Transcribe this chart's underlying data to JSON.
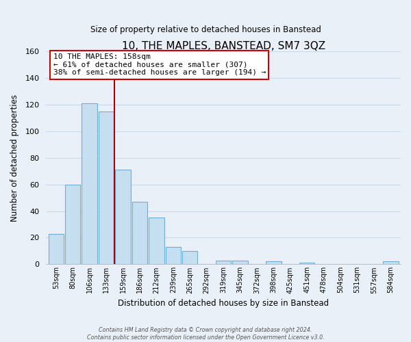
{
  "title": "10, THE MAPLES, BANSTEAD, SM7 3QZ",
  "subtitle": "Size of property relative to detached houses in Banstead",
  "xlabel": "Distribution of detached houses by size in Banstead",
  "ylabel": "Number of detached properties",
  "bin_labels": [
    "53sqm",
    "80sqm",
    "106sqm",
    "133sqm",
    "159sqm",
    "186sqm",
    "212sqm",
    "239sqm",
    "265sqm",
    "292sqm",
    "319sqm",
    "345sqm",
    "372sqm",
    "398sqm",
    "425sqm",
    "451sqm",
    "478sqm",
    "504sqm",
    "531sqm",
    "557sqm",
    "584sqm"
  ],
  "bar_heights": [
    23,
    60,
    121,
    115,
    71,
    47,
    35,
    13,
    10,
    0,
    3,
    3,
    0,
    2,
    0,
    1,
    0,
    0,
    0,
    0,
    2
  ],
  "bar_color": "#c5dff0",
  "bar_edge_color": "#6baed6",
  "vline_color": "#aa0000",
  "annotation_title": "10 THE MAPLES: 158sqm",
  "annotation_line1": "← 61% of detached houses are smaller (307)",
  "annotation_line2": "38% of semi-detached houses are larger (194) →",
  "annotation_box_color": "#ffffff",
  "annotation_box_edge": "#cc0000",
  "ylim": [
    0,
    160
  ],
  "yticks": [
    0,
    20,
    40,
    60,
    80,
    100,
    120,
    140,
    160
  ],
  "footer1": "Contains HM Land Registry data © Crown copyright and database right 2024.",
  "footer2": "Contains public sector information licensed under the Open Government Licence v3.0.",
  "bg_color": "#eaf0f8"
}
